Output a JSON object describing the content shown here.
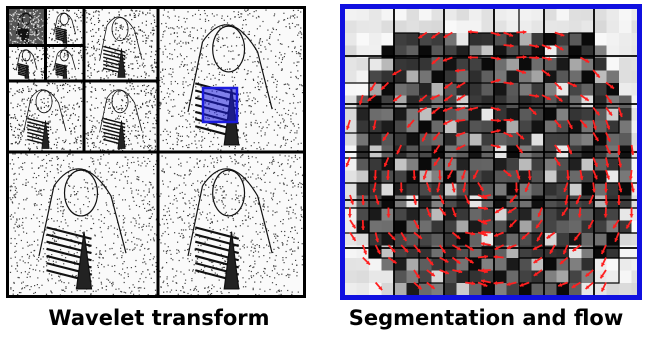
{
  "captions": {
    "left": "Wavelet transform",
    "right": "Segmentation and flow"
  },
  "colors": {
    "border": "#000000",
    "highlight": "#1a1adc",
    "frame": "#1010e0",
    "arrow": "#ff2020"
  },
  "panels": {
    "wavelet": {
      "content": "multi-level wavelet decomposition of a scarfed-woman photograph",
      "highlight": "selected block region"
    },
    "segmentation": {
      "content": "quadtree segmentation with flow direction arrows"
    }
  }
}
